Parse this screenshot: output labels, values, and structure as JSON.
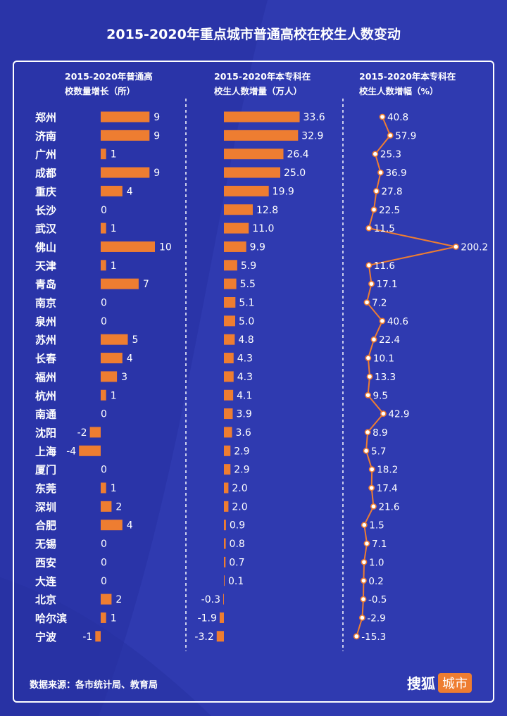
{
  "title": "2015-2020年重点城市普通高校在校生人数变动",
  "source": "数据来源：各市统计局、教育局",
  "brand": {
    "main": "搜狐",
    "tag": "城市"
  },
  "colors": {
    "background": "#2a34a8",
    "bar": "#ee7d31",
    "line": "#ee7d31",
    "text": "#ffffff"
  },
  "chart_data": [
    {
      "type": "bar",
      "orientation": "horizontal",
      "title_lines": [
        "2015-2020年普通高",
        "校数量增长（所）"
      ],
      "categories": [
        "郑州",
        "济南",
        "广州",
        "成都",
        "重庆",
        "长沙",
        "武汉",
        "佛山",
        "天津",
        "青岛",
        "南京",
        "泉州",
        "苏州",
        "长春",
        "福州",
        "杭州",
        "南通",
        "沈阳",
        "上海",
        "厦门",
        "东莞",
        "深圳",
        "合肥",
        "无锡",
        "西安",
        "大连",
        "北京",
        "哈尔滨",
        "宁波"
      ],
      "values": [
        9,
        9,
        1,
        9,
        4,
        0,
        1,
        10,
        1,
        7,
        0,
        0,
        5,
        4,
        3,
        1,
        0,
        -2,
        -4,
        0,
        1,
        2,
        4,
        0,
        0,
        0,
        2,
        1,
        -1
      ]
    },
    {
      "type": "bar",
      "orientation": "horizontal",
      "title_lines": [
        "2015-2020年本专科在",
        "校生人数增量（万人）"
      ],
      "categories": [
        "郑州",
        "济南",
        "广州",
        "成都",
        "重庆",
        "长沙",
        "武汉",
        "佛山",
        "天津",
        "青岛",
        "南京",
        "泉州",
        "苏州",
        "长春",
        "福州",
        "杭州",
        "南通",
        "沈阳",
        "上海",
        "厦门",
        "东莞",
        "深圳",
        "合肥",
        "无锡",
        "西安",
        "大连",
        "北京",
        "哈尔滨",
        "宁波"
      ],
      "values": [
        33.6,
        32.9,
        26.4,
        25.0,
        19.9,
        12.8,
        11.0,
        9.9,
        5.9,
        5.5,
        5.1,
        5.0,
        4.8,
        4.3,
        4.3,
        4.1,
        3.9,
        3.6,
        2.9,
        2.9,
        2.0,
        2.0,
        0.9,
        0.8,
        0.7,
        0.1,
        -0.3,
        -1.9,
        -3.2
      ]
    },
    {
      "type": "line",
      "orientation": "vertical",
      "title_lines": [
        "2015-2020年本专科在",
        "校生人数增幅（%）"
      ],
      "categories": [
        "郑州",
        "济南",
        "广州",
        "成都",
        "重庆",
        "长沙",
        "武汉",
        "佛山",
        "天津",
        "青岛",
        "南京",
        "泉州",
        "苏州",
        "长春",
        "福州",
        "杭州",
        "南通",
        "沈阳",
        "上海",
        "厦门",
        "东莞",
        "深圳",
        "合肥",
        "无锡",
        "西安",
        "大连",
        "北京",
        "哈尔滨",
        "宁波"
      ],
      "values": [
        40.8,
        57.9,
        25.3,
        36.9,
        27.8,
        22.5,
        11.5,
        200.2,
        11.6,
        17.1,
        7.2,
        40.6,
        22.4,
        10.1,
        13.3,
        9.5,
        42.9,
        8.9,
        5.7,
        18.2,
        17.4,
        21.6,
        1.5,
        7.1,
        1.0,
        0.2,
        -0.5,
        -2.9,
        -15.3
      ]
    }
  ]
}
